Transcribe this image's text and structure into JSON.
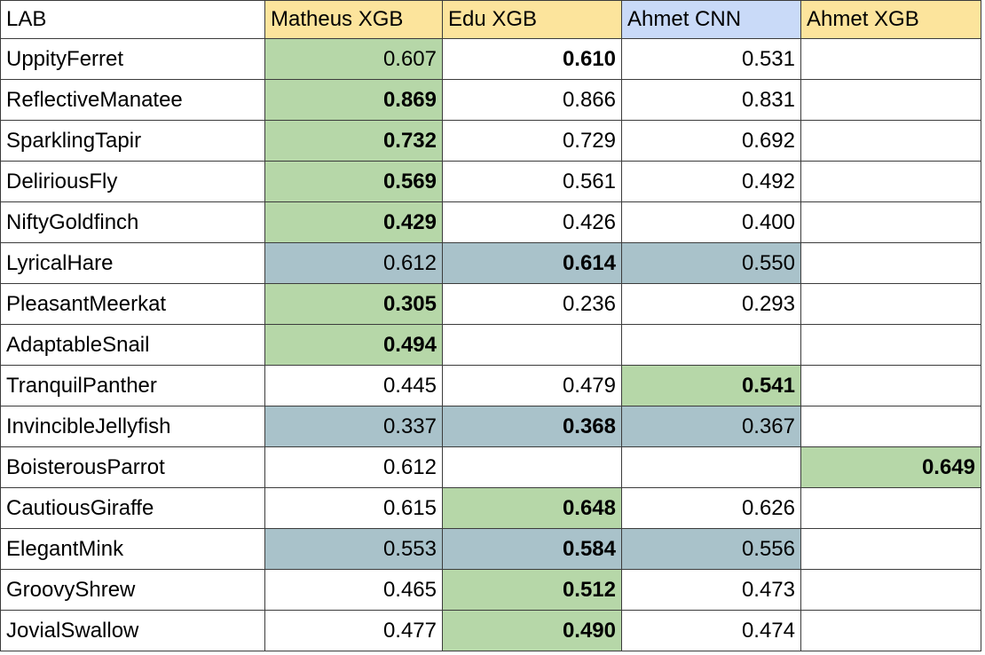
{
  "table": {
    "header": [
      {
        "text": "LAB",
        "fill": "#ffffff"
      },
      {
        "text": "Matheus XGB",
        "fill": "#fce49c"
      },
      {
        "text": "Edu XGB",
        "fill": "#fce49c"
      },
      {
        "text": "Ahmet CNN",
        "fill": "#c9daf8"
      },
      {
        "text": "Ahmet XGB",
        "fill": "#fce49c"
      }
    ],
    "rows": [
      {
        "label": "UppityFerret",
        "cells": [
          {
            "text": "0.607",
            "fill": "#b6d7a8"
          },
          {
            "text": "0.610",
            "bold": true
          },
          {
            "text": "0.531"
          },
          null
        ]
      },
      {
        "label": "ReflectiveManatee",
        "cells": [
          {
            "text": "0.869",
            "fill": "#b6d7a8",
            "bold": true
          },
          {
            "text": "0.866"
          },
          {
            "text": "0.831"
          },
          null
        ]
      },
      {
        "label": "SparklingTapir",
        "cells": [
          {
            "text": "0.732",
            "fill": "#b6d7a8",
            "bold": true
          },
          {
            "text": "0.729"
          },
          {
            "text": "0.692"
          },
          null
        ]
      },
      {
        "label": "DeliriousFly",
        "cells": [
          {
            "text": "0.569",
            "fill": "#b6d7a8",
            "bold": true
          },
          {
            "text": "0.561"
          },
          {
            "text": "0.492"
          },
          null
        ]
      },
      {
        "label": "NiftyGoldfinch",
        "cells": [
          {
            "text": "0.429",
            "fill": "#b6d7a8",
            "bold": true
          },
          {
            "text": "0.426"
          },
          {
            "text": "0.400"
          },
          null
        ]
      },
      {
        "label": "LyricalHare",
        "cells": [
          {
            "text": "0.612",
            "fill": "#a9c2ca"
          },
          {
            "text": "0.614",
            "fill": "#a9c2ca",
            "bold": true
          },
          {
            "text": "0.550",
            "fill": "#a9c2ca"
          },
          null
        ]
      },
      {
        "label": "PleasantMeerkat",
        "cells": [
          {
            "text": "0.305",
            "fill": "#b6d7a8",
            "bold": true
          },
          {
            "text": "0.236"
          },
          {
            "text": "0.293"
          },
          null
        ]
      },
      {
        "label": "AdaptableSnail",
        "cells": [
          {
            "text": "0.494",
            "fill": "#b6d7a8",
            "bold": true
          },
          null,
          null,
          null
        ]
      },
      {
        "label": "TranquilPanther",
        "cells": [
          {
            "text": "0.445"
          },
          {
            "text": "0.479"
          },
          {
            "text": "0.541",
            "fill": "#b6d7a8",
            "bold": true
          },
          null
        ]
      },
      {
        "label": "InvincibleJellyfish",
        "cells": [
          {
            "text": "0.337",
            "fill": "#a9c2ca"
          },
          {
            "text": "0.368",
            "fill": "#a9c2ca",
            "bold": true
          },
          {
            "text": "0.367",
            "fill": "#a9c2ca"
          },
          null
        ]
      },
      {
        "label": "BoisterousParrot",
        "cells": [
          {
            "text": "0.612"
          },
          null,
          null,
          {
            "text": "0.649",
            "fill": "#b6d7a8",
            "bold": true
          }
        ]
      },
      {
        "label": "CautiousGiraffe",
        "cells": [
          {
            "text": "0.615"
          },
          {
            "text": "0.648",
            "fill": "#b6d7a8",
            "bold": true
          },
          {
            "text": "0.626"
          },
          null
        ]
      },
      {
        "label": "ElegantMink",
        "cells": [
          {
            "text": "0.553",
            "fill": "#a9c2ca"
          },
          {
            "text": "0.584",
            "fill": "#a9c2ca",
            "bold": true
          },
          {
            "text": "0.556",
            "fill": "#a9c2ca"
          },
          null
        ]
      },
      {
        "label": "GroovyShrew",
        "cells": [
          {
            "text": "0.465"
          },
          {
            "text": "0.512",
            "fill": "#b6d7a8",
            "bold": true
          },
          {
            "text": "0.473"
          },
          null
        ]
      },
      {
        "label": "JovialSwallow",
        "cells": [
          {
            "text": "0.477"
          },
          {
            "text": "0.490",
            "fill": "#b6d7a8",
            "bold": true
          },
          {
            "text": "0.474"
          },
          null
        ]
      }
    ]
  }
}
